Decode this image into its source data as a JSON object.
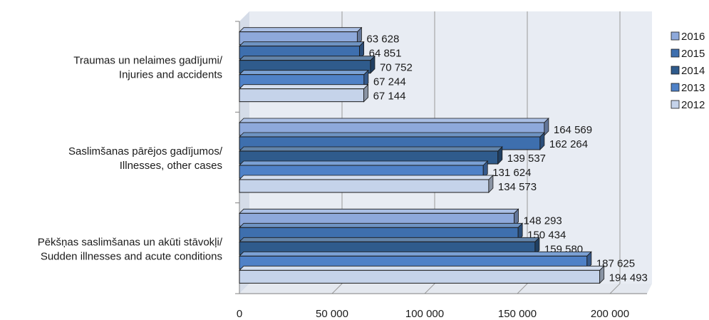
{
  "chart_data": {
    "type": "bar",
    "orientation": "horizontal",
    "style": "3d",
    "categories": [
      [
        "Traumas un nelaimes gadījumi/",
        "Injuries and accidents"
      ],
      [
        "Saslimšanas pārējos gadījumos/",
        "Illnesses, other cases"
      ],
      [
        "Pēkšņas saslimšanas un akūti stāvokļi/",
        "Sudden illnesses and acute conditions"
      ]
    ],
    "series": [
      {
        "name": "2016",
        "color": "#8EA9DB",
        "values": [
          63628,
          164569,
          148293
        ],
        "labels": [
          "63 628",
          "164 569",
          "148 293"
        ]
      },
      {
        "name": "2015",
        "color": "#3E6FAE",
        "values": [
          64851,
          162264,
          150434
        ],
        "labels": [
          "64 851",
          "162 264",
          "150 434"
        ]
      },
      {
        "name": "2014",
        "color": "#2F5B8C",
        "values": [
          70752,
          139537,
          159580
        ],
        "labels": [
          "70 752",
          "139 537",
          "159 580"
        ]
      },
      {
        "name": "2013",
        "color": "#4F81C7",
        "values": [
          67244,
          131624,
          187625
        ],
        "labels": [
          "67 244",
          "131 624",
          "187 625"
        ]
      },
      {
        "name": "2012",
        "color": "#C5D3EA",
        "values": [
          67144,
          134573,
          194493
        ],
        "labels": [
          "67 144",
          "134 573",
          "194 493"
        ]
      }
    ],
    "xlim": [
      0,
      220000
    ],
    "xticks": [
      0,
      50000,
      100000,
      150000,
      200000
    ],
    "xtick_labels": [
      "0",
      "50 000",
      "100 000",
      "150 000",
      "200 000"
    ],
    "grid": true,
    "legend_position": "right",
    "wall_color": "#E8ECF3",
    "grid_color": "#9A9A9A"
  }
}
